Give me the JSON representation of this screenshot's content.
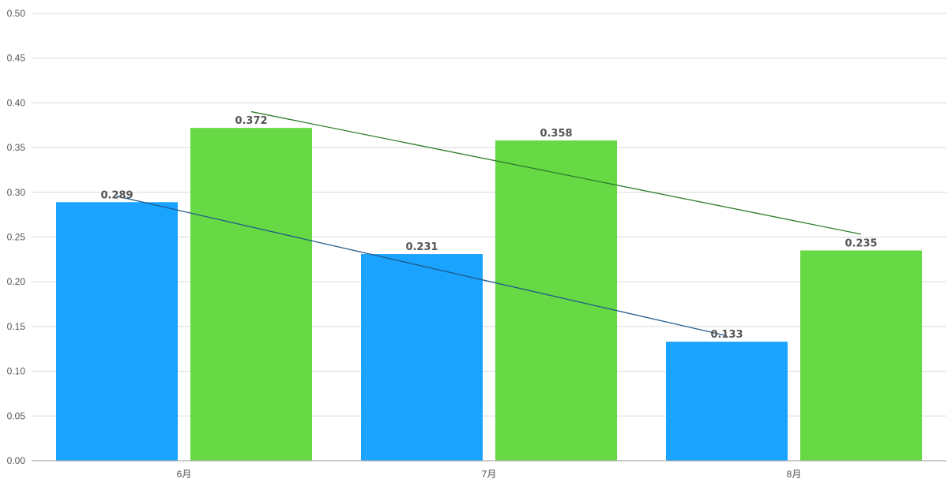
{
  "chart_data": {
    "type": "bar",
    "categories": [
      "6月",
      "7月",
      "8月"
    ],
    "series": [
      {
        "values": [
          0.289,
          0.231,
          0.133
        ],
        "color": "#1aa3ff",
        "trendline_color": "#1f5a8c",
        "data_labels": [
          "0.289",
          "0.231",
          "0.133"
        ]
      },
      {
        "values": [
          0.372,
          0.358,
          0.235
        ],
        "color": "#66d944",
        "trendline_color": "#2e7d2e",
        "data_labels": [
          "0.372",
          "0.358",
          "0.235"
        ]
      }
    ],
    "trendlines": true,
    "ylim": [
      0,
      0.5
    ],
    "yticks": [
      "0.00",
      "0.05",
      "0.10",
      "0.15",
      "0.20",
      "0.25",
      "0.30",
      "0.35",
      "0.40",
      "0.45",
      "0.50"
    ],
    "grid": true,
    "legend": "none"
  }
}
